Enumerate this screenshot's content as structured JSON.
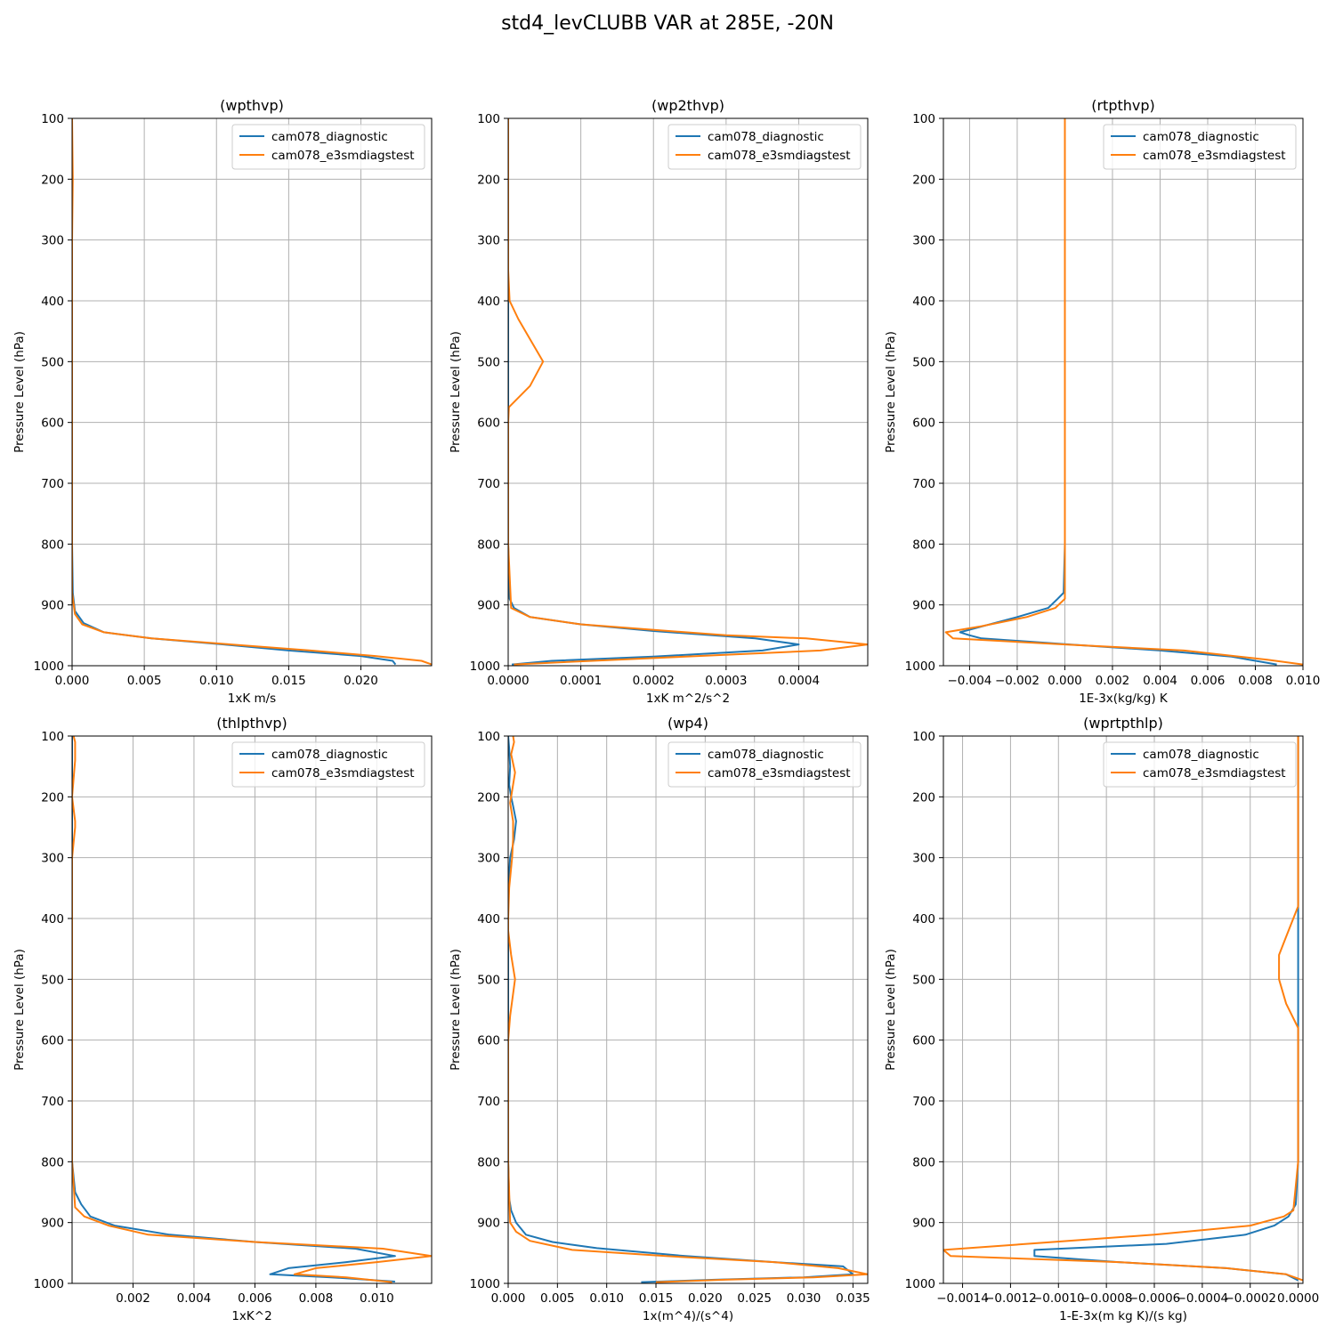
{
  "figure": {
    "title": "std4_levCLUBB VAR at 285E, -20N"
  },
  "colors": {
    "diagnostic": "#1f77b4",
    "e3smdiagstest": "#ff7f0e",
    "grid": "#b0b0b0"
  },
  "chart_data": [
    {
      "type": "line",
      "title": "(wpthvp)",
      "xlabel": "1xK m/s",
      "ylabel": "Pressure Level (hPa)",
      "xlim": [
        0,
        0.0249
      ],
      "ylim": [
        1000,
        100
      ],
      "xticks": [
        0.0,
        0.005,
        0.01,
        0.015,
        0.02
      ],
      "xtick_labels": [
        "0.000",
        "0.005",
        "0.010",
        "0.015",
        "0.020"
      ],
      "yticks": [
        100,
        200,
        300,
        400,
        500,
        600,
        700,
        800,
        900,
        1000
      ],
      "ytick_labels": [
        "100",
        "200",
        "300",
        "400",
        "500",
        "600",
        "700",
        "800",
        "900",
        "1000"
      ],
      "grid": true,
      "legend": "upper right",
      "series": [
        {
          "name": "cam078_diagnostic",
          "color_key": "diagnostic",
          "x": [
            0.0,
            0.0,
            0.0,
            0.0,
            0.0,
            0.0,
            0.0,
            0.0,
            5e-05,
            0.0002,
            0.0008,
            0.0022,
            0.0055,
            0.0105,
            0.015,
            0.02,
            0.0222,
            0.0224
          ],
          "y": [
            100,
            200,
            300,
            400,
            500,
            600,
            700,
            800,
            880,
            910,
            930,
            945,
            955,
            965,
            975,
            984,
            992,
            998
          ]
        },
        {
          "name": "cam078_e3smdiagstest",
          "color_key": "e3smdiagstest",
          "x": [
            0.0,
            5e-05,
            0.0,
            0.0,
            0.0,
            0.0,
            0.0,
            0.0,
            0.0,
            0.0002,
            0.0007,
            0.0022,
            0.0055,
            0.011,
            0.0165,
            0.021,
            0.0242,
            0.0249
          ],
          "y": [
            100,
            200,
            300,
            400,
            500,
            600,
            700,
            800,
            880,
            915,
            932,
            945,
            955,
            965,
            975,
            984,
            992,
            998
          ]
        }
      ]
    },
    {
      "type": "line",
      "title": "(wp2thvp)",
      "xlabel": "1xK m^2/s^2",
      "ylabel": "Pressure Level (hPa)",
      "xlim": [
        0,
        0.000495
      ],
      "ylim": [
        1000,
        100
      ],
      "xticks": [
        0.0,
        0.0001,
        0.0002,
        0.0003,
        0.0004
      ],
      "xtick_labels": [
        "0.0000",
        "0.0001",
        "0.0002",
        "0.0003",
        "0.0004"
      ],
      "yticks": [
        100,
        200,
        300,
        400,
        500,
        600,
        700,
        800,
        900,
        1000
      ],
      "ytick_labels": [
        "100",
        "200",
        "300",
        "400",
        "500",
        "600",
        "700",
        "800",
        "900",
        "1000"
      ],
      "grid": true,
      "legend": "upper right",
      "series": [
        {
          "name": "cam078_diagnostic",
          "color_key": "diagnostic",
          "x": [
            0.0,
            0.0,
            0.0,
            0.0,
            0.0,
            0.0,
            0.0,
            0.0,
            2e-06,
            8e-06,
            3e-05,
            0.0001,
            0.0002,
            0.00034,
            0.0004,
            0.00035,
            0.0002,
            6e-05,
            5e-06
          ],
          "y": [
            100,
            200,
            300,
            400,
            500,
            600,
            700,
            800,
            890,
            905,
            920,
            932,
            943,
            955,
            965,
            975,
            985,
            992,
            998
          ]
        },
        {
          "name": "cam078_e3smdiagstest",
          "color_key": "e3smdiagstest",
          "x": [
            0.0,
            0.0,
            0.0,
            0.0,
            2e-06,
            1.4e-05,
            4.8e-05,
            3e-05,
            1e-06,
            0.0,
            0.0,
            0.0,
            4e-06,
            3e-05,
            0.0001,
            0.0003,
            0.00041,
            0.000495,
            0.00043,
            0.00015,
            8e-06
          ],
          "y": [
            100,
            200,
            300,
            350,
            400,
            430,
            500,
            540,
            575,
            600,
            700,
            800,
            905,
            920,
            932,
            950,
            955,
            965,
            975,
            990,
            998
          ]
        }
      ]
    },
    {
      "type": "line",
      "title": "(rtpthvp)",
      "xlabel": "1E-3x(kg/kg) K",
      "ylabel": "Pressure Level (hPa)",
      "xlim": [
        -0.0051,
        0.01
      ],
      "ylim": [
        1000,
        100
      ],
      "xticks": [
        -0.004,
        -0.002,
        0.0,
        0.002,
        0.004,
        0.006,
        0.008,
        0.01
      ],
      "xtick_labels": [
        "−0.004",
        "−0.002",
        "0.000",
        "0.002",
        "0.004",
        "0.006",
        "0.008",
        "0.010"
      ],
      "yticks": [
        100,
        200,
        300,
        400,
        500,
        600,
        700,
        800,
        900,
        1000
      ],
      "ytick_labels": [
        "100",
        "200",
        "300",
        "400",
        "500",
        "600",
        "700",
        "800",
        "900",
        "1000"
      ],
      "grid": true,
      "legend": "upper right",
      "series": [
        {
          "name": "cam078_diagnostic",
          "color_key": "diagnostic",
          "x": [
            0.0,
            0.0,
            0.0,
            0.0,
            0.0,
            0.0,
            0.0,
            0.0,
            -5e-05,
            -0.0003,
            -0.0007,
            -0.002,
            -0.0044,
            -0.004,
            -0.0035,
            0.0002,
            0.004,
            0.007,
            0.0089
          ],
          "y": [
            100,
            200,
            300,
            400,
            500,
            600,
            700,
            800,
            880,
            890,
            905,
            920,
            945,
            950,
            955,
            965,
            975,
            985,
            998
          ]
        },
        {
          "name": "cam078_e3smdiagstest",
          "color_key": "e3smdiagstest",
          "x": [
            0.0,
            0.0,
            0.0,
            0.0,
            0.0,
            0.0,
            0.0,
            0.0,
            0.0,
            0.0,
            -0.0004,
            -0.0016,
            -0.0035,
            -0.005,
            -0.0047,
            0.0,
            0.005,
            0.0085,
            0.01
          ],
          "y": [
            100,
            200,
            300,
            400,
            500,
            600,
            700,
            800,
            880,
            890,
            905,
            920,
            935,
            945,
            955,
            965,
            975,
            990,
            998
          ]
        }
      ]
    },
    {
      "type": "line",
      "title": "(thlpthvp)",
      "xlabel": "1xK^2",
      "ylabel": "Pressure Level (hPa)",
      "xlim": [
        0,
        0.0118
      ],
      "ylim": [
        1000,
        100
      ],
      "xticks": [
        0.002,
        0.004,
        0.006,
        0.008,
        0.01
      ],
      "xtick_labels": [
        "0.002",
        "0.004",
        "0.006",
        "0.008",
        "0.010"
      ],
      "yticks": [
        100,
        200,
        300,
        400,
        500,
        600,
        700,
        800,
        900,
        1000
      ],
      "ytick_labels": [
        "100",
        "200",
        "300",
        "400",
        "500",
        "600",
        "700",
        "800",
        "900",
        "1000"
      ],
      "grid": true,
      "legend": "upper right",
      "series": [
        {
          "name": "cam078_diagnostic",
          "color_key": "diagnostic",
          "x": [
            0.0,
            0.0,
            0.0,
            0.0,
            0.0,
            0.0,
            0.0,
            0.0,
            0.0001,
            0.0003,
            0.0006,
            0.0014,
            0.0032,
            0.006,
            0.0093,
            0.0106,
            0.009,
            0.0071,
            0.0065,
            0.0085,
            0.0106
          ],
          "y": [
            100,
            200,
            300,
            400,
            500,
            600,
            700,
            800,
            850,
            870,
            890,
            905,
            920,
            932,
            943,
            955,
            965,
            975,
            985,
            990,
            997
          ]
        },
        {
          "name": "cam078_e3smdiagstest",
          "color_key": "e3smdiagstest",
          "x": [
            5e-05,
            0.0001,
            0.0001,
            0.0,
            0.0001,
            0.0001,
            0.0,
            0.0,
            0.0,
            0.0,
            0.0,
            0.0,
            0.0001,
            0.0004,
            0.0012,
            0.0025,
            0.006,
            0.0102,
            0.0118,
            0.01,
            0.008,
            0.0073,
            0.009,
            0.0105
          ],
          "y": [
            100,
            110,
            140,
            200,
            240,
            250,
            300,
            400,
            500,
            600,
            700,
            800,
            875,
            890,
            905,
            920,
            932,
            943,
            955,
            965,
            975,
            985,
            990,
            998
          ]
        }
      ]
    },
    {
      "type": "line",
      "title": "(wp4)",
      "xlabel": "1x(m^4)/(s^4)",
      "ylabel": "Pressure Level (hPa)",
      "xlim": [
        0,
        0.0365
      ],
      "ylim": [
        1000,
        100
      ],
      "xticks": [
        0.0,
        0.005,
        0.01,
        0.015,
        0.02,
        0.025,
        0.03,
        0.035
      ],
      "xtick_labels": [
        "0.000",
        "0.005",
        "0.010",
        "0.015",
        "0.020",
        "0.025",
        "0.030",
        "0.035"
      ],
      "yticks": [
        100,
        200,
        300,
        400,
        500,
        600,
        700,
        800,
        900,
        1000
      ],
      "ytick_labels": [
        "100",
        "200",
        "300",
        "400",
        "500",
        "600",
        "700",
        "800",
        "900",
        "1000"
      ],
      "grid": true,
      "legend": "upper right",
      "series": [
        {
          "name": "cam078_diagnostic",
          "color_key": "diagnostic",
          "x": [
            0.0,
            0.0001,
            0.0002,
            0.0001,
            0.0003,
            0.0005,
            0.0008,
            0.0006,
            0.0002,
            0.0,
            0.0,
            0.0,
            0.0,
            0.0,
            0.0,
            0.0001,
            0.0003,
            0.0008,
            0.0018,
            0.0045,
            0.009,
            0.018,
            0.027,
            0.034,
            0.035,
            0.03,
            0.021,
            0.0135
          ],
          "y": [
            100,
            120,
            150,
            180,
            200,
            215,
            240,
            270,
            300,
            350,
            400,
            500,
            600,
            700,
            800,
            860,
            880,
            900,
            920,
            932,
            942,
            955,
            965,
            972,
            985,
            990,
            994,
            998
          ]
        },
        {
          "name": "cam078_e3smdiagstest",
          "color_key": "e3smdiagstest",
          "x": [
            0.0005,
            0.0006,
            0.0003,
            0.0007,
            0.0004,
            0.0002,
            0.0005,
            0.0005,
            0.0004,
            0.0001,
            0.0,
            0.0,
            0.0003,
            0.0007,
            0.0002,
            0.0,
            0.0,
            0.0,
            0.0002,
            0.0008,
            0.0022,
            0.0065,
            0.016,
            0.027,
            0.0335,
            0.0365,
            0.031,
            0.022,
            0.015
          ],
          "y": [
            100,
            110,
            130,
            160,
            190,
            210,
            240,
            270,
            300,
            350,
            400,
            420,
            460,
            500,
            560,
            600,
            700,
            800,
            900,
            915,
            930,
            945,
            955,
            965,
            975,
            985,
            990,
            994,
            998
          ]
        }
      ]
    },
    {
      "type": "line",
      "title": "(wprtpthlp)",
      "xlabel": "1-E-3x(m kg K)/(s kg)",
      "ylabel": "Pressure Level (hPa)",
      "xlim": [
        -0.00148,
        2e-05
      ],
      "ylim": [
        1000,
        100
      ],
      "xticks": [
        -0.0014,
        -0.0012,
        -0.001,
        -0.0008,
        -0.0006,
        -0.0004,
        -0.0002,
        0.0
      ],
      "xtick_labels": [
        "−0.0014",
        "−0.0012",
        "−0.0010",
        "−0.0008",
        "−0.0006",
        "−0.0004",
        "−0.0002",
        "0.0000"
      ],
      "yticks": [
        100,
        200,
        300,
        400,
        500,
        600,
        700,
        800,
        900,
        1000
      ],
      "ytick_labels": [
        "100",
        "200",
        "300",
        "400",
        "500",
        "600",
        "700",
        "800",
        "900",
        "1000"
      ],
      "grid": true,
      "legend": "upper right",
      "series": [
        {
          "name": "cam078_diagnostic",
          "color_key": "diagnostic",
          "x": [
            0.0,
            0.0,
            0.0,
            0.0,
            0.0,
            0.0,
            0.0,
            0.0,
            -1e-05,
            -4e-05,
            -0.0001,
            -0.00022,
            -0.00055,
            -0.0011,
            -0.0011,
            -0.00075,
            -0.0003,
            -5e-05,
            0.0
          ],
          "y": [
            100,
            200,
            300,
            400,
            500,
            600,
            700,
            800,
            870,
            890,
            905,
            920,
            935,
            945,
            955,
            965,
            975,
            985,
            995
          ]
        },
        {
          "name": "cam078_e3smdiagstest",
          "color_key": "e3smdiagstest",
          "x": [
            0.0,
            0.0,
            0.0,
            0.0,
            -5e-05,
            -8e-05,
            -8e-05,
            -5e-05,
            0.0,
            0.0,
            0.0,
            0.0,
            -2e-05,
            -6e-05,
            -0.0002,
            -0.0006,
            -0.00148,
            -0.00145,
            -0.00075,
            -0.0003,
            -5e-05,
            2e-05
          ],
          "y": [
            100,
            200,
            300,
            380,
            430,
            460,
            500,
            540,
            580,
            600,
            700,
            800,
            880,
            890,
            905,
            920,
            945,
            955,
            965,
            975,
            985,
            995
          ]
        }
      ]
    }
  ]
}
